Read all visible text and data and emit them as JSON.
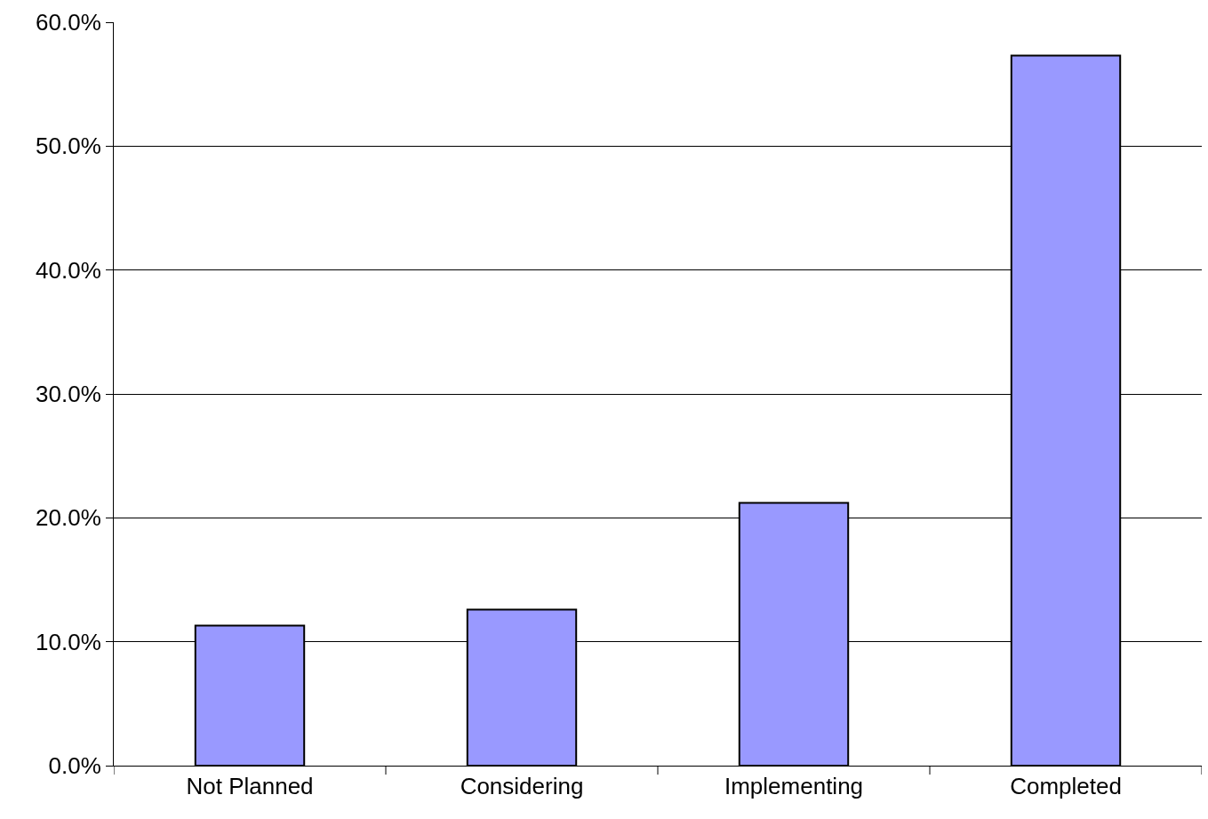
{
  "chart_data": {
    "type": "bar",
    "categories": [
      "Not Planned",
      "Considering",
      "Implementing",
      "Completed"
    ],
    "values": [
      11.3,
      12.6,
      21.2,
      57.3
    ],
    "color": "#9999ff",
    "ylim": [
      0,
      60
    ],
    "yticks": [
      {
        "value": 0,
        "label": "0.0%"
      },
      {
        "value": 10,
        "label": "10.0%"
      },
      {
        "value": 20,
        "label": "20.0%"
      },
      {
        "value": 30,
        "label": "30.0%"
      },
      {
        "value": 40,
        "label": "40.0%"
      },
      {
        "value": 50,
        "label": "50.0%"
      },
      {
        "value": 60,
        "label": "60.0%"
      }
    ],
    "grid": "y"
  }
}
